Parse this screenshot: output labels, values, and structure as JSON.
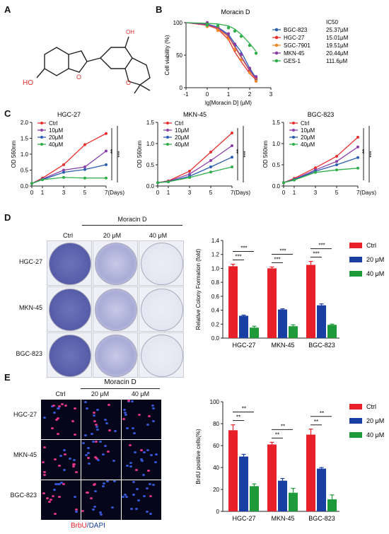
{
  "panels": {
    "A": "A",
    "B": "B",
    "C": "C",
    "D": "D",
    "E": "E"
  },
  "panelA": {
    "substituents": [
      "OH",
      "HO"
    ]
  },
  "panelB": {
    "title": "Moracin D",
    "xlabel": "lg[Moracin D] (μM)",
    "ylabel": "Cell viability (%)",
    "ic50_header": "IC50",
    "xticks": [
      "-1",
      "0",
      "1",
      "2",
      "3"
    ],
    "yticks": [
      "0",
      "50",
      "100"
    ],
    "legend": [
      {
        "name": "BGC-823",
        "ic50": "25.37μM",
        "color": "#2a5fb0"
      },
      {
        "name": "HGC-27",
        "ic50": "15.01μM",
        "color": "#e8302e"
      },
      {
        "name": "SGC-7901",
        "ic50": "19.51μM",
        "color": "#f08a2a"
      },
      {
        "name": "MKN-45",
        "ic50": "20.44μM",
        "color": "#8a3fa6"
      },
      {
        "name": "GES-1",
        "ic50": "111.6μM",
        "color": "#2fae4a"
      }
    ]
  },
  "panelC": {
    "ylabel": "OD 560nm",
    "xticks": [
      "0",
      "1",
      "3",
      "5",
      "7(Days)"
    ],
    "yticks": [
      "0.0",
      "0.5",
      "1.0",
      "1.5",
      "2.0"
    ],
    "series_labels": [
      "Ctrl",
      "10μM",
      "20μM",
      "40μM"
    ],
    "colors": [
      "#e8302e",
      "#8a3fa6",
      "#2a5fb0",
      "#2fae4a"
    ],
    "sig": [
      "**",
      "***"
    ]
  },
  "panelD": {
    "header": "Moracin D",
    "cols": [
      "Ctrl",
      "20 μM",
      "40 μM"
    ],
    "rows": [
      "HGC-27",
      "MKN-45",
      "BGC-823"
    ],
    "legend": [
      "Ctrl",
      "20 μM",
      "40 μM"
    ],
    "sig": "***"
  },
  "panelE": {
    "header": "Moracin D",
    "cols": [
      "Ctrl",
      "20 μM",
      "40 μM"
    ],
    "rows": [
      "HGC-27",
      "MKN-45",
      "BGC-823"
    ],
    "stain_brdu": "BrbU",
    "stain_sep": "/",
    "stain_dapi": "DAPI",
    "legend": [
      "Ctrl",
      "20 μM",
      "40 μM"
    ],
    "sig": "**"
  },
  "colors": {
    "ctrl": "#e8202a",
    "mid": "#1a3fa3",
    "high": "#1f9a3a"
  },
  "chart_data": [
    {
      "type": "line",
      "title": "Moracin D",
      "xlabel": "lg[Moracin D] (μM)",
      "ylabel": "Cell viability (%)",
      "xlim": [
        -1,
        3
      ],
      "ylim": [
        0,
        100
      ],
      "x": [
        -1,
        0,
        0.5,
        1,
        1.3,
        1.6,
        2,
        2.3
      ],
      "series": [
        {
          "name": "BGC-823",
          "values": [
            100,
            98,
            93,
            82,
            68,
            55,
            30,
            15
          ]
        },
        {
          "name": "HGC-27",
          "values": [
            100,
            96,
            90,
            74,
            55,
            40,
            22,
            12
          ]
        },
        {
          "name": "SGC-7901",
          "values": [
            100,
            97,
            91,
            78,
            62,
            46,
            26,
            13
          ]
        },
        {
          "name": "MKN-45",
          "values": [
            100,
            97,
            92,
            80,
            64,
            48,
            27,
            14
          ]
        },
        {
          "name": "GES-1",
          "values": [
            100,
            99,
            98,
            95,
            90,
            82,
            68,
            56
          ]
        }
      ]
    },
    {
      "type": "line",
      "title": "HGC-27",
      "ylabel": "OD 560nm",
      "x": [
        0,
        1,
        3,
        5,
        7
      ],
      "ylim": [
        0,
        2
      ],
      "series": [
        {
          "name": "Ctrl",
          "values": [
            0.08,
            0.25,
            0.67,
            1.3,
            1.65
          ]
        },
        {
          "name": "10μM",
          "values": [
            0.08,
            0.22,
            0.5,
            0.6,
            1.1
          ]
        },
        {
          "name": "20μM",
          "values": [
            0.08,
            0.2,
            0.43,
            0.52,
            0.67
          ]
        },
        {
          "name": "40μM",
          "values": [
            0.08,
            0.2,
            0.27,
            0.25,
            0.25
          ]
        }
      ]
    },
    {
      "type": "line",
      "title": "MKN-45",
      "ylabel": "OD 560nm",
      "x": [
        0,
        1,
        3,
        5,
        7
      ],
      "ylim": [
        0,
        1.5
      ],
      "series": [
        {
          "name": "Ctrl",
          "values": [
            0.08,
            0.12,
            0.35,
            0.8,
            1.25
          ]
        },
        {
          "name": "10μM",
          "values": [
            0.08,
            0.11,
            0.28,
            0.6,
            0.95
          ]
        },
        {
          "name": "20μM",
          "values": [
            0.08,
            0.1,
            0.23,
            0.45,
            0.68
          ]
        },
        {
          "name": "40μM",
          "values": [
            0.08,
            0.1,
            0.2,
            0.33,
            0.45
          ]
        }
      ]
    },
    {
      "type": "line",
      "title": "BGC-823",
      "ylabel": "OD 560nm",
      "x": [
        0,
        1,
        3,
        5,
        7
      ],
      "ylim": [
        0,
        1.5
      ],
      "series": [
        {
          "name": "Ctrl",
          "values": [
            0.08,
            0.18,
            0.43,
            0.7,
            1.15
          ]
        },
        {
          "name": "10μM",
          "values": [
            0.08,
            0.16,
            0.38,
            0.58,
            0.92
          ]
        },
        {
          "name": "20μM",
          "values": [
            0.08,
            0.15,
            0.35,
            0.5,
            0.67
          ]
        },
        {
          "name": "40μM",
          "values": [
            0.08,
            0.14,
            0.32,
            0.38,
            0.42
          ]
        }
      ]
    },
    {
      "type": "bar",
      "ylabel": "Relative Colony Formation (fold)",
      "ylim": [
        0,
        1.4
      ],
      "categories": [
        "HGC-27",
        "MKN-45",
        "BGC-823"
      ],
      "series": [
        {
          "name": "Ctrl",
          "values": [
            1.03,
            1.0,
            1.05
          ]
        },
        {
          "name": "20 μM",
          "values": [
            0.32,
            0.41,
            0.47
          ]
        },
        {
          "name": "40 μM",
          "values": [
            0.15,
            0.17,
            0.19
          ]
        }
      ],
      "errors": [
        [
          0.03,
          0.02,
          0.05
        ],
        [
          0.01,
          0.01,
          0.02
        ],
        [
          0.02,
          0.02,
          0.01
        ]
      ]
    },
    {
      "type": "bar",
      "ylabel": "BrdU positive cells(%)",
      "ylim": [
        0,
        100
      ],
      "categories": [
        "HGC-27",
        "MKN-45",
        "BGC-823"
      ],
      "series": [
        {
          "name": "Ctrl",
          "values": [
            74,
            61,
            70
          ]
        },
        {
          "name": "20 μM",
          "values": [
            50,
            28,
            39
          ]
        },
        {
          "name": "40 μM",
          "values": [
            23,
            17,
            11
          ]
        }
      ],
      "errors": [
        [
          5,
          2,
          5
        ],
        [
          2,
          2,
          1
        ],
        [
          2,
          4,
          4
        ]
      ]
    }
  ]
}
